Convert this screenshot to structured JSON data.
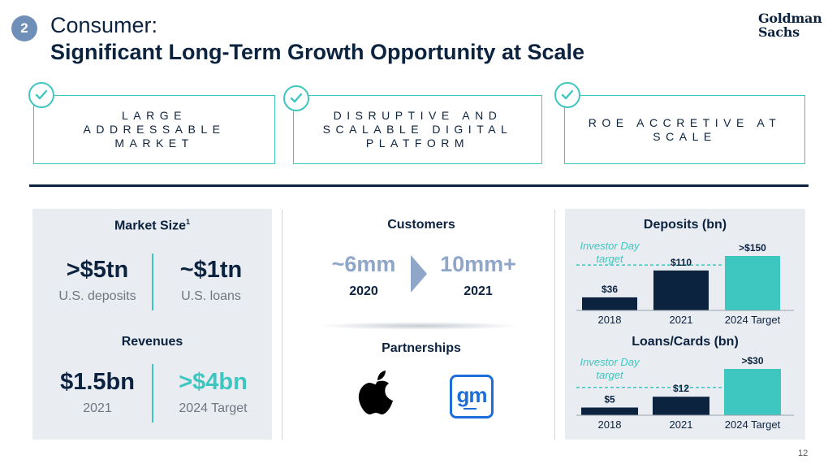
{
  "header": {
    "section_number": "2",
    "title_line1": "Consumer:",
    "title_line2": "Significant Long-Term Growth Opportunity at Scale",
    "logo_line1": "Goldman",
    "logo_line2": "Sachs"
  },
  "pillars": [
    {
      "label": "LARGE ADDRESSABLE MARKET",
      "icon": "check-icon"
    },
    {
      "label": "DISRUPTIVE AND SCALABLE DIGITAL PLATFORM",
      "icon": "check-icon"
    },
    {
      "label": "ROE ACCRETIVE AT SCALE",
      "icon": "check-icon"
    }
  ],
  "market_size": {
    "title": "Market Size",
    "footnote": "1",
    "items": [
      {
        "value": ">$5tn",
        "label": "U.S. deposits"
      },
      {
        "value": "~$1tn",
        "label": "U.S. loans"
      }
    ]
  },
  "revenues": {
    "title": "Revenues",
    "items": [
      {
        "value": "$1.5bn",
        "label": "2021"
      },
      {
        "value": ">$4bn",
        "label": "2024 Target"
      }
    ]
  },
  "customers": {
    "title": "Customers",
    "from": {
      "value": "~6mm",
      "year": "2020"
    },
    "to": {
      "value": "10mm+",
      "year": "2021"
    }
  },
  "partnerships": {
    "title": "Partnerships",
    "logos": [
      "apple-logo",
      "gm-logo"
    ],
    "gm_text": "gm"
  },
  "colors": {
    "navy": "#0c2340",
    "teal": "#3ec7c1",
    "light_blue": "#8fa6c8",
    "panel_bg": "#e9ecf1"
  },
  "chart_data": [
    {
      "type": "bar",
      "title": "Deposits (bn)",
      "categories": [
        "2018",
        "2021",
        "2024 Target"
      ],
      "values": [
        36,
        110,
        150
      ],
      "value_labels": [
        "$36",
        "$110",
        ">$150"
      ],
      "annotation": "Investor Day target",
      "reference_value": 125,
      "ylim": [
        0,
        150
      ]
    },
    {
      "type": "bar",
      "title": "Loans/Cards (bn)",
      "categories": [
        "2018",
        "2021",
        "2024 Target"
      ],
      "values": [
        5,
        12,
        30
      ],
      "value_labels": [
        "$5",
        "$12",
        ">$30"
      ],
      "annotation": "Investor Day target",
      "reference_value": 18,
      "ylim": [
        0,
        30
      ]
    }
  ],
  "page_number": "12"
}
